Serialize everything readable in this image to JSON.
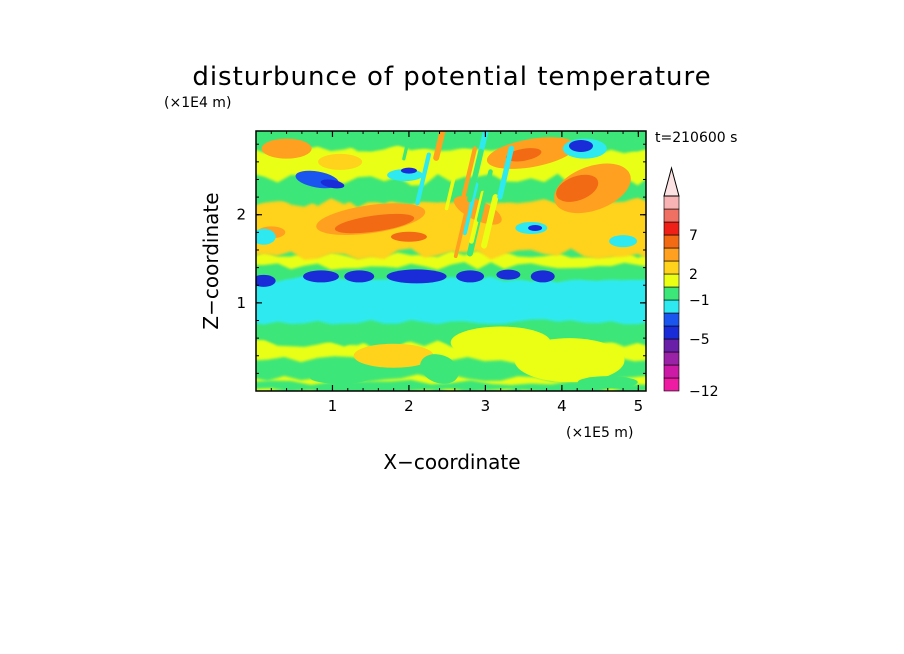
{
  "chart_data": {
    "type": "heatmap",
    "title": "disturbunce of potential temperature",
    "time_label": "t=210600 s",
    "xlabel": "X−coordinate",
    "ylabel": "Z−coordinate",
    "x_unit": "(×1E5 m)",
    "y_unit": "(×1E4 m)",
    "xlim": [
      0,
      5.1
    ],
    "ylim": [
      0,
      2.95
    ],
    "x_ticks": [
      {
        "value": 1,
        "label": "1"
      },
      {
        "value": 2,
        "label": "2"
      },
      {
        "value": 3,
        "label": "3"
      },
      {
        "value": 4,
        "label": "4"
      },
      {
        "value": 5,
        "label": "5"
      }
    ],
    "y_ticks": [
      {
        "value": 1,
        "label": "1"
      },
      {
        "value": 2,
        "label": "2"
      }
    ],
    "colorbar": {
      "levels": [
        -12,
        -5,
        -1,
        2,
        7
      ],
      "level_labels": [
        "−12",
        "−5",
        "−1",
        "2",
        "7"
      ],
      "extend": "max",
      "colors": [
        "#ee1ba3",
        "#cc1aa7",
        "#9a22a6",
        "#6a1fa8",
        "#1a2bd8",
        "#1a55f0",
        "#2eeaf0",
        "#3ce678",
        "#eaff14",
        "#ffd21c",
        "#ffa020",
        "#f26a14",
        "#ee2018",
        "#f07064",
        "#f8b4b4",
        "#fce2e2"
      ]
    },
    "field_description": {
      "background": "#3ce678",
      "bands": [
        {
          "z_range": [
            0.8,
            1.25
          ],
          "color": "#2eeaf0"
        },
        {
          "z_range": [
            1.25,
            1.35
          ],
          "color": "#1a2bd8"
        },
        {
          "z_range": [
            1.5,
            2.2
          ],
          "color": "#ffa020"
        },
        {
          "z_range": [
            0.0,
            0.6
          ],
          "color": "#eaff14"
        }
      ]
    }
  }
}
